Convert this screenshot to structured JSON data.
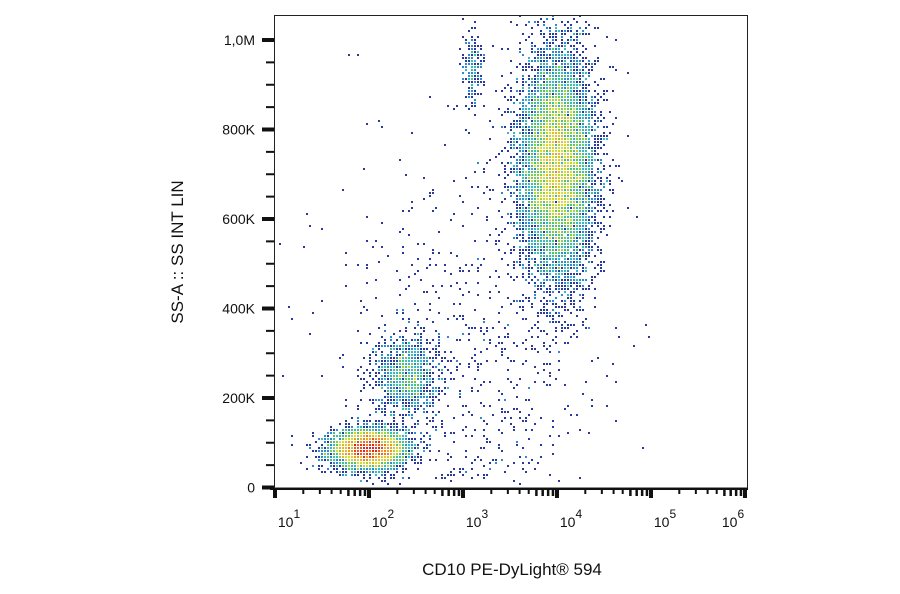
{
  "chart_data": {
    "type": "scatter",
    "subtype": "flow-cytometry density dot plot",
    "xlabel": "CD10  PE-DyLight® 594",
    "ylabel": "SS-A :: SS INT LIN",
    "x_scale": "log",
    "xlim": [
      10,
      1000000
    ],
    "ylim": [
      0,
      1050000
    ],
    "x_ticks": [
      {
        "value": 10,
        "base": "10",
        "exp": "1"
      },
      {
        "value": 100,
        "base": "10",
        "exp": "2"
      },
      {
        "value": 1000,
        "base": "10",
        "exp": "3"
      },
      {
        "value": 10000,
        "base": "10",
        "exp": "4"
      },
      {
        "value": 100000,
        "base": "10",
        "exp": "5"
      },
      {
        "value": 1000000,
        "base": "10",
        "exp": "6"
      }
    ],
    "y_ticks": [
      {
        "value": 0,
        "label": "0"
      },
      {
        "value": 200000,
        "label": "200K"
      },
      {
        "value": 400000,
        "label": "400K"
      },
      {
        "value": 600000,
        "label": "600K"
      },
      {
        "value": 800000,
        "label": "800K"
      },
      {
        "value": 1000000,
        "label": "1,0M"
      }
    ],
    "grid": false,
    "populations": [
      {
        "name": "lymphocytes",
        "x_log10_center": 2.0,
        "x_log10_sd": 0.2,
        "y_center": 85000,
        "y_sd": 22000,
        "events": 4200
      },
      {
        "name": "monocytes",
        "x_log10_center": 2.4,
        "x_log10_sd": 0.16,
        "y_center": 250000,
        "y_sd": 45000,
        "events": 1100
      },
      {
        "name": "granulocytes",
        "x_log10_center": 4.0,
        "x_log10_sd": 0.2,
        "y_center": 720000,
        "y_sd": 125000,
        "events": 9000
      },
      {
        "name": "granulocyte-high-ss-subset",
        "x_log10_center": 3.1,
        "x_log10_sd": 0.06,
        "y_center": 930000,
        "y_sd": 45000,
        "events": 180
      },
      {
        "name": "background",
        "x_log10_center": 3.0,
        "x_log10_sd": 0.7,
        "y_center": 300000,
        "y_sd": 250000,
        "events": 700
      }
    ],
    "colormap": [
      "#2a3a9c",
      "#2f7fd0",
      "#34c0c8",
      "#52c25a",
      "#d8e030",
      "#f0a020",
      "#e62020"
    ]
  }
}
